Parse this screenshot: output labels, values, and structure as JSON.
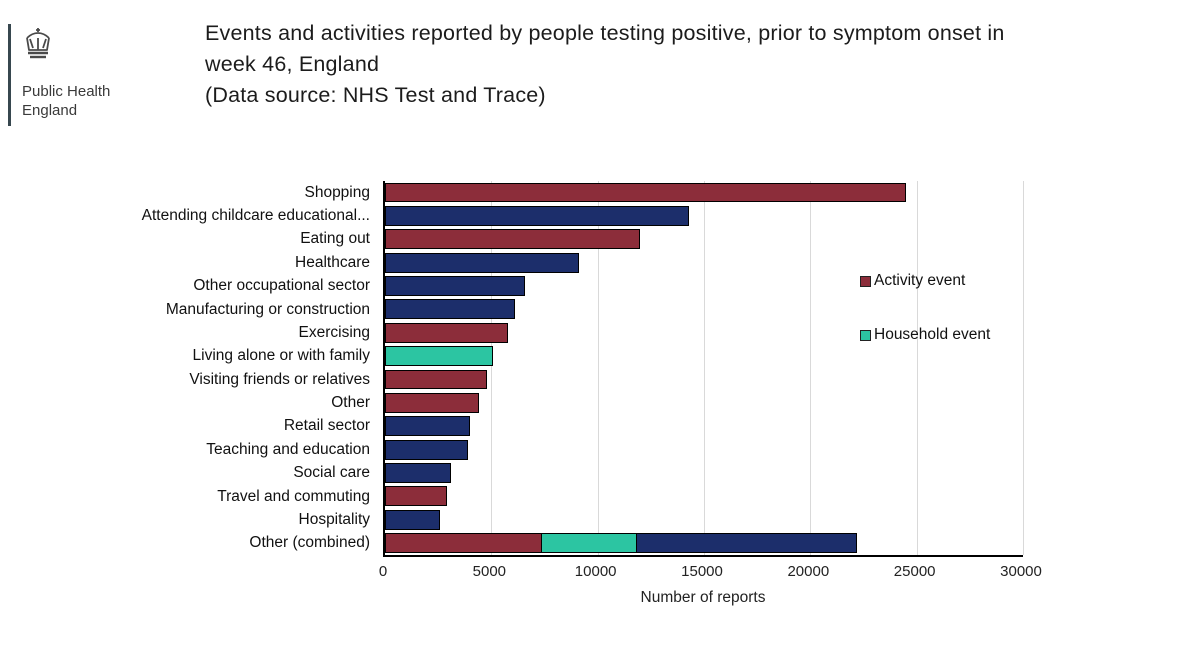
{
  "header": {
    "org_line1": "Public Health",
    "org_line2": "England",
    "title_line1": "Events and activities reported by people testing positive, prior to symptom onset in",
    "title_line2": "week 46, England",
    "title_line3": "(Data source: NHS Test and Trace)"
  },
  "chart_data": {
    "type": "bar",
    "orientation": "horizontal",
    "title": "Events and activities reported by people testing positive, prior to symptom onset in week 46, England (Data source: NHS Test and Trace)",
    "xlabel": "Number of reports",
    "xlim": [
      0,
      30000
    ],
    "xticks": [
      0,
      5000,
      10000,
      15000,
      20000,
      25000,
      30000
    ],
    "grid": "vertical",
    "colors": {
      "activity": "#8c2d3a",
      "household": "#2cc5a2",
      "unlabelled": "#1c2e6b"
    },
    "legend": [
      {
        "label": "Activity event",
        "color_key": "activity"
      },
      {
        "label": "Household event",
        "color_key": "household"
      }
    ],
    "bars": [
      {
        "category": "Shopping",
        "segments": [
          {
            "color_key": "activity",
            "value": 24500
          }
        ]
      },
      {
        "category": "Attending childcare educational...",
        "segments": [
          {
            "color_key": "unlabelled",
            "value": 14300
          }
        ]
      },
      {
        "category": "Eating out",
        "segments": [
          {
            "color_key": "activity",
            "value": 12000
          }
        ]
      },
      {
        "category": "Healthcare",
        "segments": [
          {
            "color_key": "unlabelled",
            "value": 9100
          }
        ]
      },
      {
        "category": "Other occupational sector",
        "segments": [
          {
            "color_key": "unlabelled",
            "value": 6600
          }
        ]
      },
      {
        "category": "Manufacturing or construction",
        "segments": [
          {
            "color_key": "unlabelled",
            "value": 6100
          }
        ]
      },
      {
        "category": "Exercising",
        "segments": [
          {
            "color_key": "activity",
            "value": 5800
          }
        ]
      },
      {
        "category": "Living alone or with family",
        "segments": [
          {
            "color_key": "household",
            "value": 5100
          }
        ]
      },
      {
        "category": "Visiting friends or relatives",
        "segments": [
          {
            "color_key": "activity",
            "value": 4800
          }
        ]
      },
      {
        "category": "Other",
        "segments": [
          {
            "color_key": "activity",
            "value": 4400
          }
        ]
      },
      {
        "category": "Retail sector",
        "segments": [
          {
            "color_key": "unlabelled",
            "value": 4000
          }
        ]
      },
      {
        "category": "Teaching and education",
        "segments": [
          {
            "color_key": "unlabelled",
            "value": 3900
          }
        ]
      },
      {
        "category": "Social care",
        "segments": [
          {
            "color_key": "unlabelled",
            "value": 3100
          }
        ]
      },
      {
        "category": "Travel and commuting",
        "segments": [
          {
            "color_key": "activity",
            "value": 2900
          }
        ]
      },
      {
        "category": "Hospitality",
        "segments": [
          {
            "color_key": "unlabelled",
            "value": 2600
          }
        ]
      },
      {
        "category": "Other (combined)",
        "segments": [
          {
            "color_key": "activity",
            "value": 7400
          },
          {
            "color_key": "household",
            "value": 4500
          },
          {
            "color_key": "unlabelled",
            "value": 10400
          }
        ]
      }
    ]
  }
}
